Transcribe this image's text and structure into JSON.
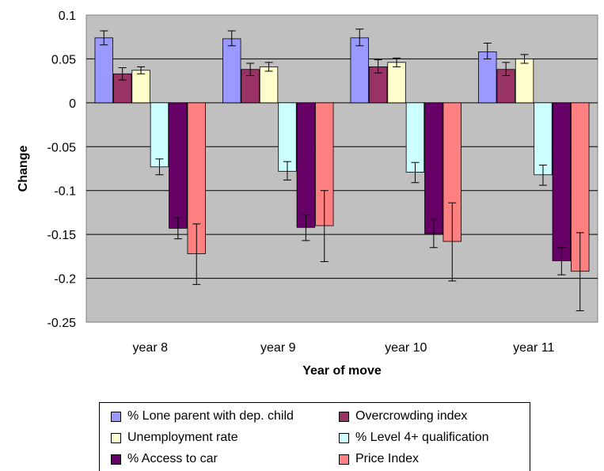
{
  "chart_data": {
    "type": "bar",
    "categories": [
      "year 8",
      "year 9",
      "year 10",
      "year 11"
    ],
    "series": [
      {
        "name": "% Lone parent with dep. child",
        "color": "#9999FF",
        "values": [
          0.074,
          0.073,
          0.074,
          0.058
        ],
        "err_high": [
          0.082,
          0.082,
          0.084,
          0.068
        ],
        "err_low": [
          0.066,
          0.065,
          0.065,
          0.05
        ]
      },
      {
        "name": "Overcrowding index",
        "color": "#993366",
        "values": [
          0.033,
          0.038,
          0.041,
          0.038
        ],
        "err_high": [
          0.04,
          0.045,
          0.049,
          0.046
        ],
        "err_low": [
          0.026,
          0.031,
          0.034,
          0.031
        ]
      },
      {
        "name": "Unemployment rate",
        "color": "#FFFFCC",
        "values": [
          0.037,
          0.041,
          0.046,
          0.05
        ],
        "err_high": [
          0.041,
          0.046,
          0.051,
          0.055
        ],
        "err_low": [
          0.033,
          0.036,
          0.041,
          0.045
        ]
      },
      {
        "name": "% Level 4+ qualification",
        "color": "#CCFFFF",
        "values": [
          -0.073,
          -0.078,
          -0.079,
          -0.082
        ],
        "err_high": [
          -0.064,
          -0.067,
          -0.068,
          -0.071
        ],
        "err_low": [
          -0.082,
          -0.088,
          -0.091,
          -0.094
        ]
      },
      {
        "name": "% Access to car",
        "color": "#660066",
        "values": [
          -0.143,
          -0.142,
          -0.149,
          -0.18
        ],
        "err_high": [
          -0.131,
          -0.128,
          -0.133,
          -0.165
        ],
        "err_low": [
          -0.155,
          -0.157,
          -0.165,
          -0.196
        ]
      },
      {
        "name": "Price Index",
        "color": "#FF8080",
        "values": [
          -0.172,
          -0.14,
          -0.158,
          -0.192
        ],
        "err_high": [
          -0.138,
          -0.1,
          -0.114,
          -0.148
        ],
        "err_low": [
          -0.207,
          -0.181,
          -0.203,
          -0.237
        ]
      }
    ],
    "xlabel": "Year of move",
    "ylabel": "Change",
    "ylim": [
      -0.25,
      0.1
    ],
    "yticks": [
      "0.1",
      "0.05",
      "0",
      "-0.05",
      "-0.1",
      "-0.15",
      "-0.2",
      "-0.25"
    ],
    "ytick_values": [
      0.1,
      0.05,
      0,
      -0.05,
      -0.1,
      -0.15,
      -0.2,
      -0.25
    ],
    "grid": true,
    "legend_position": "bottom",
    "plot_background": "#C0C0C0"
  }
}
